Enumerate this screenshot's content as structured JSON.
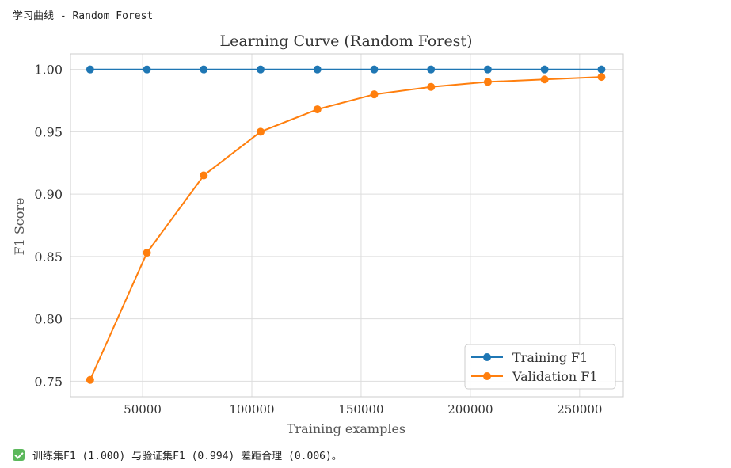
{
  "header": {
    "title": "学习曲线 - Random Forest"
  },
  "chart_data": {
    "type": "line",
    "title": "Learning Curve (Random Forest)",
    "xlabel": "Training examples",
    "ylabel": "F1 Score",
    "xlim": [
      17000,
      270000
    ],
    "ylim": [
      0.7375,
      1.0125
    ],
    "xticks": [
      50000,
      100000,
      150000,
      200000,
      250000
    ],
    "xtick_labels": [
      "50000",
      "100000",
      "150000",
      "200000",
      "250000"
    ],
    "yticks": [
      0.75,
      0.8,
      0.85,
      0.9,
      0.95,
      1.0
    ],
    "ytick_labels": [
      "0.75",
      "0.80",
      "0.85",
      "0.90",
      "0.95",
      "1.00"
    ],
    "grid": true,
    "legend_position": "lower-right",
    "x": [
      26000,
      52000,
      78000,
      104000,
      130000,
      156000,
      182000,
      208000,
      234000,
      260000
    ],
    "series": [
      {
        "name": "Training F1",
        "color": "#1f77b4",
        "values": [
          1.0,
          1.0,
          1.0,
          1.0,
          1.0,
          1.0,
          1.0,
          1.0,
          1.0,
          1.0
        ]
      },
      {
        "name": "Validation F1",
        "color": "#ff7f0e",
        "values": [
          0.751,
          0.853,
          0.915,
          0.95,
          0.968,
          0.98,
          0.986,
          0.99,
          0.992,
          0.994
        ]
      }
    ]
  },
  "status": {
    "icon": "check-icon",
    "message": "训练集F1 (1.000) 与验证集F1 (0.994) 差距合理 (0.006)。"
  }
}
